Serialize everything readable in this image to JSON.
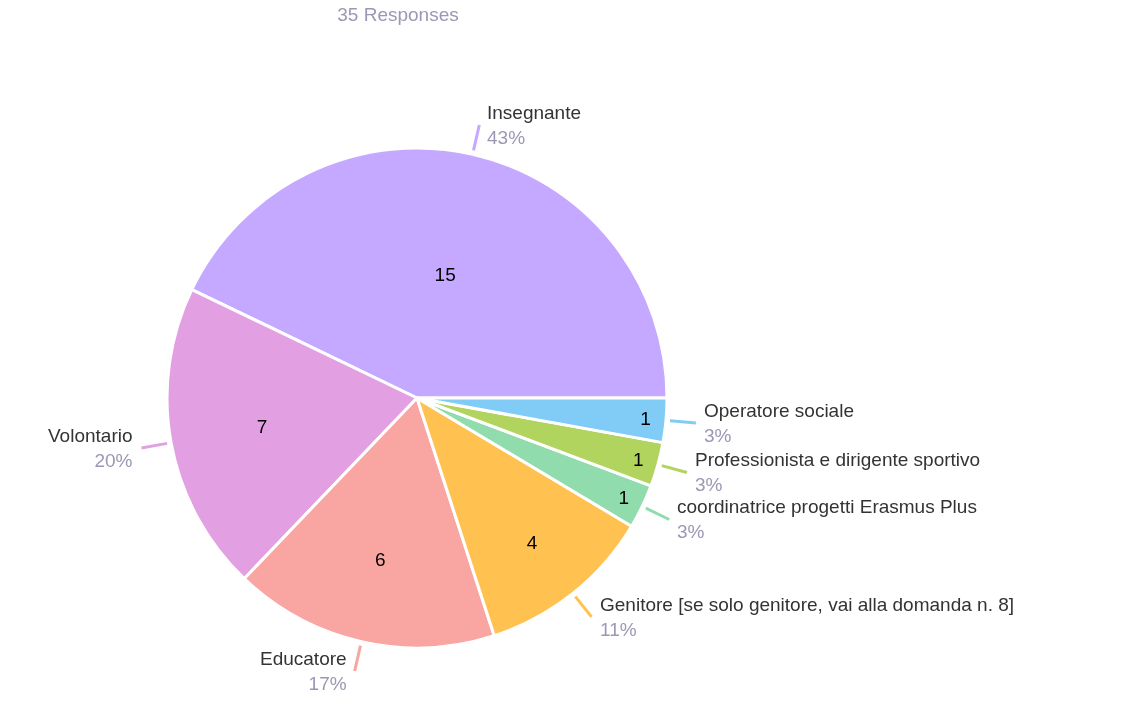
{
  "chart_data": {
    "type": "pie",
    "title": "35 Responses",
    "categories": [
      "Insegnante",
      "Volontario",
      "Educatore",
      "Genitore [se solo genitore, vai alla domanda n. 8]",
      "coordinatrice progetti Erasmus Plus",
      "Professionista e dirigente sportivo",
      "Operatore sociale"
    ],
    "values": [
      15,
      7,
      6,
      4,
      1,
      1,
      1
    ],
    "colors": [
      "#c5a8ff",
      "#e2a0e3",
      "#f9a5a2",
      "#ffc150",
      "#90dcad",
      "#b0d45d",
      "#80ccf7"
    ],
    "annotations": [
      {
        "text": "43%",
        "x": "Insegnante"
      },
      {
        "text": "20%",
        "x": "Volontario"
      },
      {
        "text": "17%",
        "x": "Educatore"
      },
      {
        "text": "11%",
        "x": "Genitore [se solo genitore, vai alla domanda n. 8]"
      },
      {
        "text": "3%",
        "x": "coordinatrice progetti Erasmus Plus"
      },
      {
        "text": "3%",
        "x": "Professionista e dirigente sportivo"
      },
      {
        "text": "3%",
        "x": "Operatore sociale"
      }
    ],
    "data_labels": true,
    "legend": false
  }
}
